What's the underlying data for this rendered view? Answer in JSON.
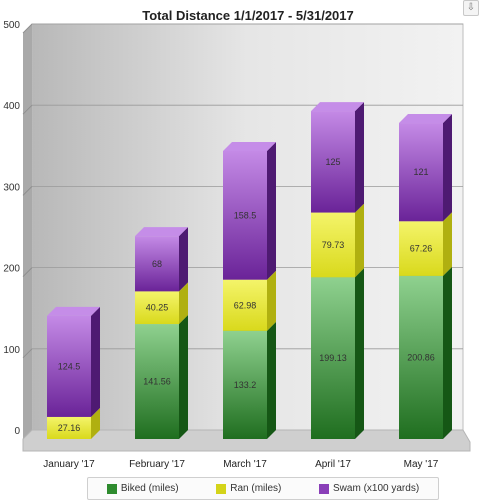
{
  "chart_data": {
    "type": "bar",
    "stacked": true,
    "title": "Total Distance 1/1/2017 - 5/31/2017",
    "categories": [
      "January '17",
      "February '17",
      "March '17",
      "April '17",
      "May '17"
    ],
    "series": [
      {
        "name": "Biked (miles)",
        "color": "#3a9a3a",
        "values": [
          0,
          141.56,
          133.2,
          199.13,
          200.86
        ],
        "labels": [
          "",
          "141.56",
          "133.2",
          "199.13",
          "200.86"
        ]
      },
      {
        "name": "Ran (miles)",
        "color": "#e6e62a",
        "values": [
          27.16,
          40.25,
          62.98,
          79.73,
          67.26
        ],
        "labels": [
          "27.16",
          "40.25",
          "62.98",
          "79.73",
          "67.26"
        ]
      },
      {
        "name": "Swam (x100 yards)",
        "color": "#9b4fc9",
        "values": [
          124.5,
          68,
          158.5,
          125,
          121
        ],
        "labels": [
          "124.5",
          "68",
          "158.5",
          "125",
          "121"
        ]
      }
    ],
    "y_ticks": [
      "0",
      "100",
      "200",
      "300",
      "400",
      "500"
    ],
    "ylim": [
      0,
      500
    ],
    "grid": true,
    "legend_position": "bottom"
  },
  "toolbar": {
    "export_icon": "export-icon"
  }
}
